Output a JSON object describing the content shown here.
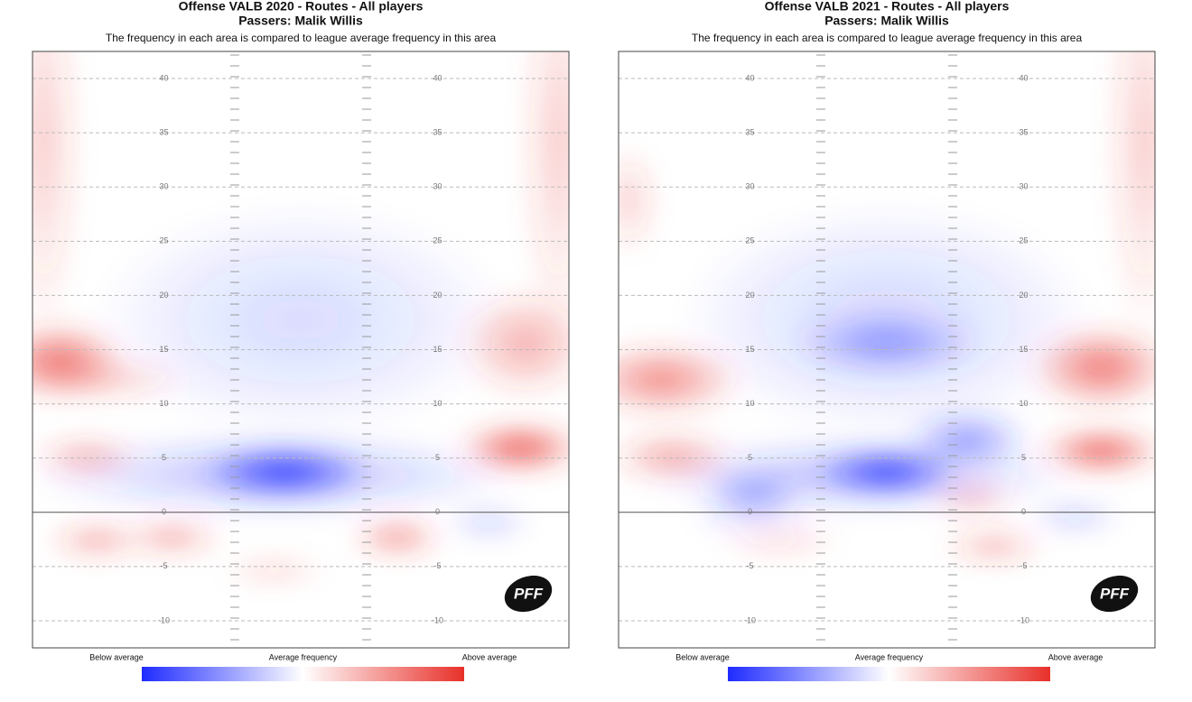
{
  "chart_data": [
    {
      "type": "heatmap",
      "title": "Offense VALB 2020 - Routes - All players",
      "subtitle": "Passers: Malik Willis",
      "caption": "The frequency in each area is compared to league average frequency in this area",
      "ylim": [
        -12.5,
        42.5
      ],
      "yticks": [
        -10,
        -5,
        0,
        5,
        10,
        15,
        20,
        25,
        30,
        35,
        40
      ],
      "legend": {
        "low": "Below average",
        "mid": "Average frequency",
        "high": "Above average"
      },
      "colors": {
        "low": "#1f2bff",
        "mid": "#ffffff",
        "high": "#e8302a"
      },
      "logo": "PFF"
    },
    {
      "type": "heatmap",
      "title": "Offense VALB 2021 - Routes - All players",
      "subtitle": "Passers: Malik Willis",
      "caption": "The frequency in each area is compared to league average frequency in this area",
      "ylim": [
        -12.5,
        42.5
      ],
      "yticks": [
        -10,
        -5,
        0,
        5,
        10,
        15,
        20,
        25,
        30,
        35,
        40
      ],
      "legend": {
        "low": "Below average",
        "mid": "Average frequency",
        "high": "Above average"
      },
      "colors": {
        "low": "#1f2bff",
        "mid": "#ffffff",
        "high": "#e8302a"
      },
      "logo": "PFF"
    }
  ]
}
